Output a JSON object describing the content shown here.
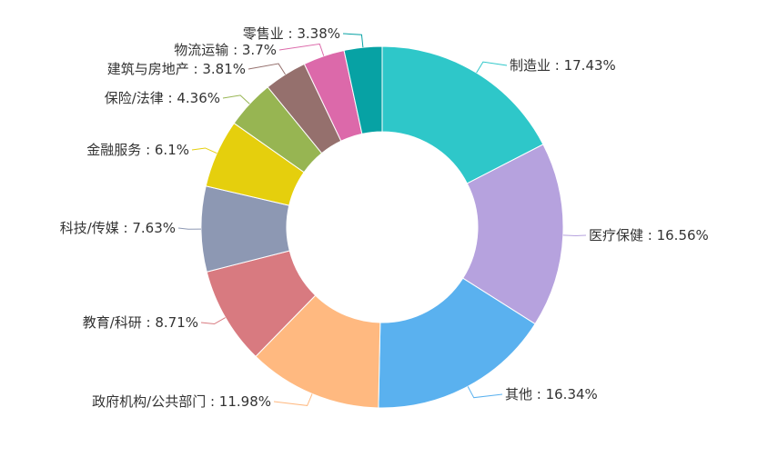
{
  "chart_data": {
    "type": "pie",
    "variant": "donut",
    "title": "",
    "legend": "none",
    "label_separator": " : ",
    "value_suffix": "%",
    "slices": [
      {
        "name": "制造业",
        "value": 17.43,
        "color": "#2ec7c9"
      },
      {
        "name": "医疗保健",
        "value": 16.56,
        "color": "#b6a2de"
      },
      {
        "name": "其他",
        "value": 16.34,
        "color": "#5ab1ef"
      },
      {
        "name": "政府机构/公共部门",
        "value": 11.98,
        "color": "#ffb980"
      },
      {
        "name": "教育/科研",
        "value": 8.71,
        "color": "#d87a80"
      },
      {
        "name": "科技/传媒",
        "value": 7.63,
        "color": "#8d98b3"
      },
      {
        "name": "金融服务",
        "value": 6.1,
        "color": "#e5cf0d"
      },
      {
        "name": "保险/法律",
        "value": 4.36,
        "color": "#97b552"
      },
      {
        "name": "建筑与房地产",
        "value": 3.81,
        "color": "#95706d"
      },
      {
        "name": "物流运输",
        "value": 3.7,
        "color": "#dc69aa"
      },
      {
        "name": "零售业",
        "value": 3.38,
        "color": "#07a2a4"
      }
    ]
  }
}
